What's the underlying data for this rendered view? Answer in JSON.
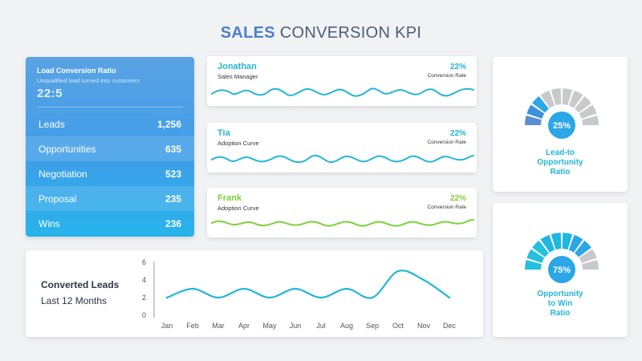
{
  "title": {
    "strong": "SALES",
    "rest": "CONVERSION KPI"
  },
  "funnel": {
    "heading": "Load Conversion Ratio",
    "subheading": "Unqualified lead turned into customers",
    "ratio": "22:5",
    "rows": [
      {
        "label": "Leads",
        "value": "1,256"
      },
      {
        "label": "Opportunities",
        "value": "635"
      },
      {
        "label": "Negotiation",
        "value": "523"
      },
      {
        "label": "Proposal",
        "value": "235"
      },
      {
        "label": "Wins",
        "value": "236"
      }
    ]
  },
  "people": [
    {
      "name": "Jonathan",
      "role": "Sales Manager",
      "percent": "22%",
      "percent_label": "Conversion Rate",
      "color": "#23b6d6"
    },
    {
      "name": "Tia",
      "role": "Adoption Curve",
      "percent": "22%",
      "percent_label": "Conversion Rate",
      "color": "#23b6d6"
    },
    {
      "name": "Frank",
      "role": "Adoption Curve",
      "percent": "22%",
      "percent_label": "Conversion Rate",
      "color": "#7dd13a"
    }
  ],
  "chart": {
    "title_line1": "Converted Leads",
    "title_line2": "Last 12 Months"
  },
  "chart_data": {
    "type": "line",
    "categories": [
      "Jan",
      "Feb",
      "Mar",
      "Apr",
      "May",
      "Jun",
      "Jul",
      "Aug",
      "Sep",
      "Oct",
      "Nov",
      "Dec"
    ],
    "values": [
      2.0,
      3.0,
      2.0,
      3.0,
      2.0,
      3.0,
      2.0,
      3.0,
      2.0,
      5.0,
      4.0,
      2.0
    ],
    "yticks": [
      "6",
      "4",
      "2",
      "0"
    ],
    "ylim": [
      0,
      6
    ],
    "color": "#23b6d6"
  },
  "gauges": [
    {
      "value": "25%",
      "fraction": 0.25,
      "label_lines": [
        "Lead-to",
        "Opportunity",
        "Ratio"
      ],
      "fill_colors": [
        "#5a8fd2",
        "#3d8fe0",
        "#2ba6e6"
      ],
      "empty_color": "#c8c9cb"
    },
    {
      "value": "75%",
      "fraction": 0.75,
      "label_lines": [
        "Opportunity",
        "to Win",
        "Ratio"
      ],
      "fill_colors": [
        "#25c0de",
        "#1fb6e2",
        "#2ba6e6"
      ],
      "empty_color": "#c8c9cb"
    }
  ],
  "colors": {
    "accent": "#23b6d6",
    "green": "#7dd13a",
    "blue": "#4e7fc8"
  }
}
